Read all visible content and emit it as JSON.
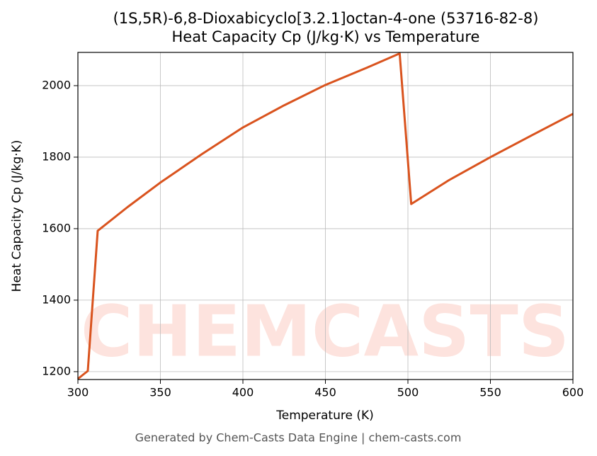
{
  "chart_data": {
    "type": "line",
    "title": "(1S,5R)-6,8-Dioxabicyclo[3.2.1]octan-4-one (53716-82-8)",
    "subtitle": "Heat Capacity Cp (J/kg·K) vs Temperature",
    "x_label": "Temperature (K)",
    "y_label": "Heat Capacity Cp (J/kg·K)",
    "watermark": "CHEMCASTS",
    "footer": "Generated by Chem-Casts Data Engine | chem-casts.com",
    "x": [
      300,
      306,
      312,
      330,
      350,
      375,
      400,
      425,
      450,
      475,
      495,
      502,
      525,
      550,
      575,
      600
    ],
    "series": [
      {
        "name": "Cp",
        "color": "#d9531e",
        "values": [
          1180,
          1202,
          1594,
          1660,
          1729,
          1808,
          1883,
          1945,
          2002,
          2050,
          2090,
          1669,
          1736,
          1800,
          1861,
          1921
        ]
      }
    ],
    "xlim": [
      300,
      600
    ],
    "ylim": [
      1178,
      2093
    ],
    "xticks": [
      300,
      350,
      400,
      450,
      500,
      550,
      600
    ],
    "yticks": [
      1200,
      1400,
      1600,
      1800,
      2000
    ],
    "grid": true
  }
}
